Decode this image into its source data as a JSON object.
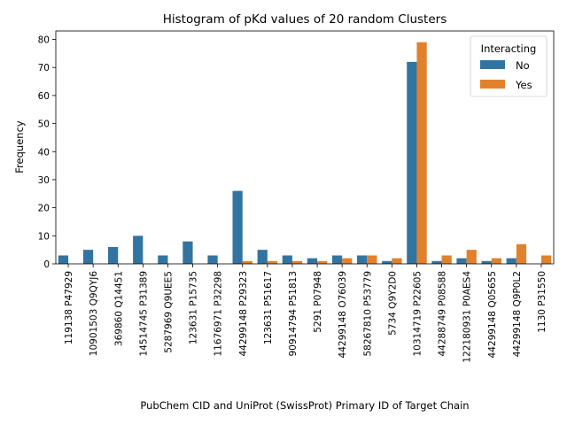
{
  "chart_data": {
    "type": "bar",
    "title": "Histogram of pKd values of 20 random Clusters",
    "xlabel": "PubChem CID and UniProt (SwissProt) Primary ID of Target Chain",
    "ylabel": "Frequency",
    "ylim": [
      0,
      83
    ],
    "yticks": [
      0,
      10,
      20,
      30,
      40,
      50,
      60,
      70,
      80
    ],
    "grid": false,
    "legend": {
      "title": "Interacting",
      "position": "top-right"
    },
    "categories": [
      "119138 P47929",
      "10901503 Q9QYJ6",
      "369860 Q14451",
      "14514745 P31389",
      "5287969 Q9UEE5",
      "123631 P15735",
      "11676971 P32298",
      "44299148 P29323",
      "123631 P51617",
      "90914794 P51813",
      "5291 P07948",
      "44299148 O76039",
      "58267810 P53779",
      "5734 Q9Y2D0",
      "10314719 P22605",
      "44288749 P08588",
      "122180931 P0AES4",
      "44299148 Q05655",
      "44299148 Q9P0L2",
      "1130 P31550"
    ],
    "series": [
      {
        "name": "No",
        "color": "#3274a1",
        "values": [
          3,
          5,
          6,
          10,
          3,
          8,
          3,
          26,
          5,
          3,
          2,
          3,
          3,
          1,
          72,
          1,
          2,
          1,
          2,
          0
        ]
      },
      {
        "name": "Yes",
        "color": "#e1812c",
        "values": [
          0,
          0,
          0,
          0,
          0,
          0,
          0,
          1,
          1,
          1,
          1,
          2,
          3,
          2,
          79,
          3,
          5,
          2,
          7,
          3
        ]
      }
    ]
  }
}
